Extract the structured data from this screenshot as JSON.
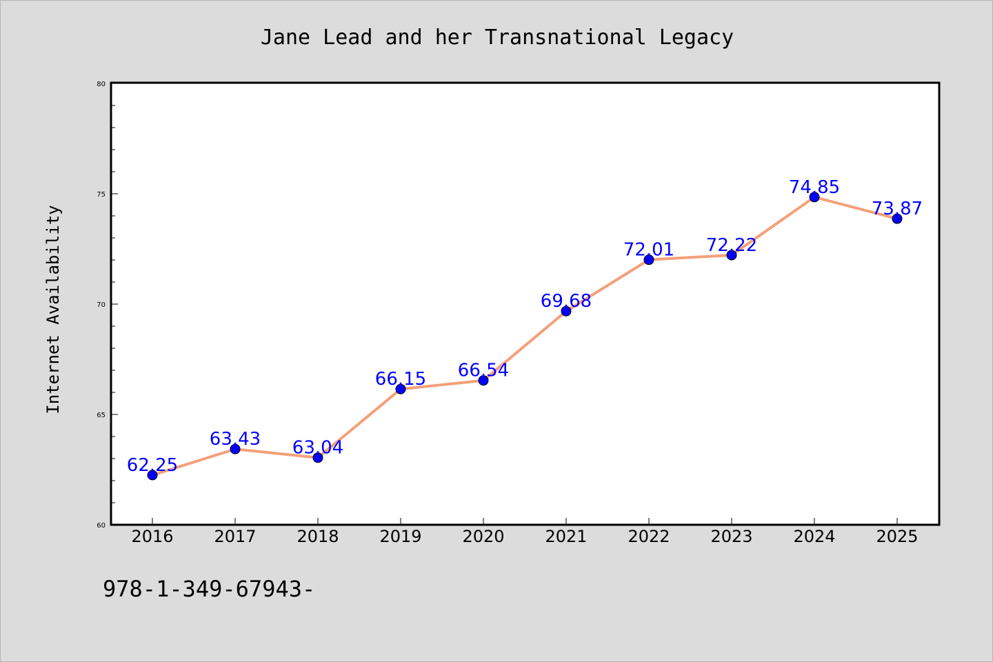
{
  "chart_data": {
    "type": "line",
    "title": "Jane Lead and her Transnational Legacy",
    "xlabel": "",
    "ylabel": "Internet Availability",
    "categories": [
      "2016",
      "2017",
      "2018",
      "2019",
      "2020",
      "2021",
      "2022",
      "2023",
      "2024",
      "2025"
    ],
    "series": [
      {
        "values": [
          62.25,
          63.43,
          63.04,
          66.15,
          66.54,
          69.68,
          72.01,
          72.22,
          74.85,
          73.87
        ],
        "labels": [
          "62.25",
          "63.43",
          "63.04",
          "66.15",
          "66.54",
          "69.68",
          "72.01",
          "72.22",
          "74.85",
          "73.87"
        ]
      }
    ],
    "ylim": [
      60,
      80
    ],
    "yticks": [
      60,
      65,
      70,
      75,
      80
    ],
    "ytick_labels": [
      "60",
      "65",
      "70",
      "75",
      "80"
    ],
    "grid": false,
    "colors": {
      "background": "#dcdcdc",
      "plot_background": "#ffffff",
      "line": "#f4a07a",
      "marker": "#0000ff",
      "data_label": "#0000ff",
      "text": "#000000"
    }
  },
  "annotation": "978-1-349-67943-"
}
